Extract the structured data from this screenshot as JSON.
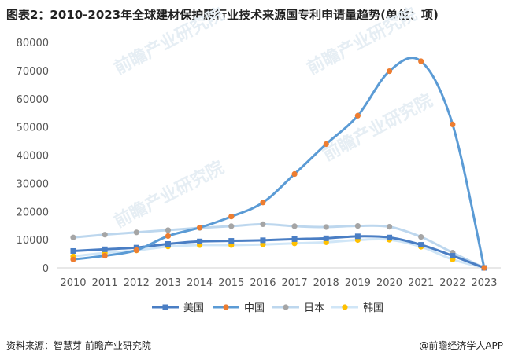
{
  "title": "图表2：2010-2023年全球建材保护膜行业技术来源国专利申请量趋势(单位：项)",
  "source": "资料来源：智慧芽 前瞻产业研究院",
  "brand": "@前瞻经济学人APP",
  "watermark": "前瞻产业研究院",
  "chart_data": {
    "type": "line",
    "title": "图表2：2010-2023年全球建材保护膜行业技术来源国专利申请量趋势(单位：项)",
    "x": [
      "2010",
      "2011",
      "2012",
      "2013",
      "2014",
      "2015",
      "2016",
      "2017",
      "2018",
      "2019",
      "2020",
      "2021",
      "2022",
      "2023"
    ],
    "ylim": [
      0,
      80000
    ],
    "yticks": [
      "0",
      "10000",
      "20000",
      "30000",
      "40000",
      "50000",
      "60000",
      "70000",
      "80000"
    ],
    "legend_position": "bottom",
    "series": [
      {
        "name": "美国",
        "color": "#4a7ec4",
        "marker": "square",
        "values": [
          6000,
          6600,
          7200,
          8500,
          9400,
          9600,
          9800,
          10200,
          10500,
          11200,
          10800,
          8200,
          4300,
          0
        ]
      },
      {
        "name": "中国",
        "color": "#5b9bd5",
        "marker_color": "#ed7d31",
        "marker": "circle",
        "values": [
          3000,
          4300,
          6300,
          11300,
          14300,
          18200,
          23200,
          33300,
          43900,
          54000,
          69800,
          73300,
          50900,
          0
        ]
      },
      {
        "name": "日本",
        "color": "#bdd7ee",
        "marker_color": "#a5a5a5",
        "marker": "circle",
        "values": [
          10800,
          11800,
          12600,
          13400,
          14200,
          14800,
          15500,
          14800,
          14500,
          14900,
          14600,
          11000,
          5400,
          0
        ]
      },
      {
        "name": "韩国",
        "color": "#d0e6f7",
        "marker_color": "#ffc000",
        "marker": "circle",
        "values": [
          4100,
          5300,
          6200,
          7600,
          8100,
          8100,
          8300,
          8700,
          9100,
          9900,
          10000,
          7500,
          3000,
          0
        ]
      }
    ]
  }
}
